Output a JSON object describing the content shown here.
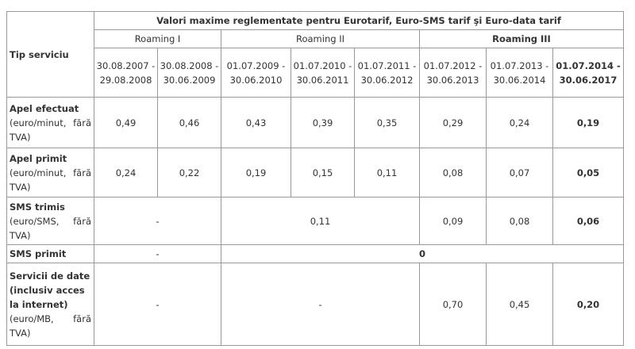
{
  "table": {
    "title": "Valori maxime reglementate pentru Eurotarif, Euro-SMS tarif şi Euro-data tarif",
    "row_header": "Tip serviciu",
    "groups": [
      "Roaming I",
      "Roaming II",
      "Roaming III"
    ],
    "periods": [
      "30.08.2007 - 29.08.2008",
      "30.08.2008 - 30.06.2009",
      "01.07.2009 - 30.06.2010",
      "01.07.2010 - 30.06.2011",
      "01.07.2011 - 30.06.2012",
      "01.07.2012 - 30.06.2013",
      "01.07.2013 - 30.06.2014",
      "01.07.2014 - 30.06.2017"
    ],
    "rows": [
      {
        "name": "Apel efectuat",
        "unit": "(euro/minut, fără TVA)",
        "values": [
          "0,49",
          "0,46",
          "0,43",
          "0,39",
          "0,35",
          "0,29",
          "0,24",
          "0,19"
        ]
      },
      {
        "name": "Apel primit",
        "unit": "(euro/minut, fără TVA)",
        "values": [
          "0,24",
          "0,22",
          "0,19",
          "0,15",
          "0,11",
          "0,08",
          "0,07",
          "0,05"
        ]
      },
      {
        "name": "SMS trimis",
        "unit": "(euro/SMS, fără TVA)",
        "values": [
          "-",
          "0,11",
          "0,09",
          "0,08",
          "0,06"
        ]
      },
      {
        "name": "SMS primit",
        "values": [
          "-",
          "0"
        ]
      },
      {
        "name": "Servicii de date (inclusiv acces la internet)",
        "unit": "(euro/MB, fără TVA)",
        "values": [
          "-",
          "-",
          "0,70",
          "0,45",
          "0,20"
        ]
      }
    ]
  }
}
